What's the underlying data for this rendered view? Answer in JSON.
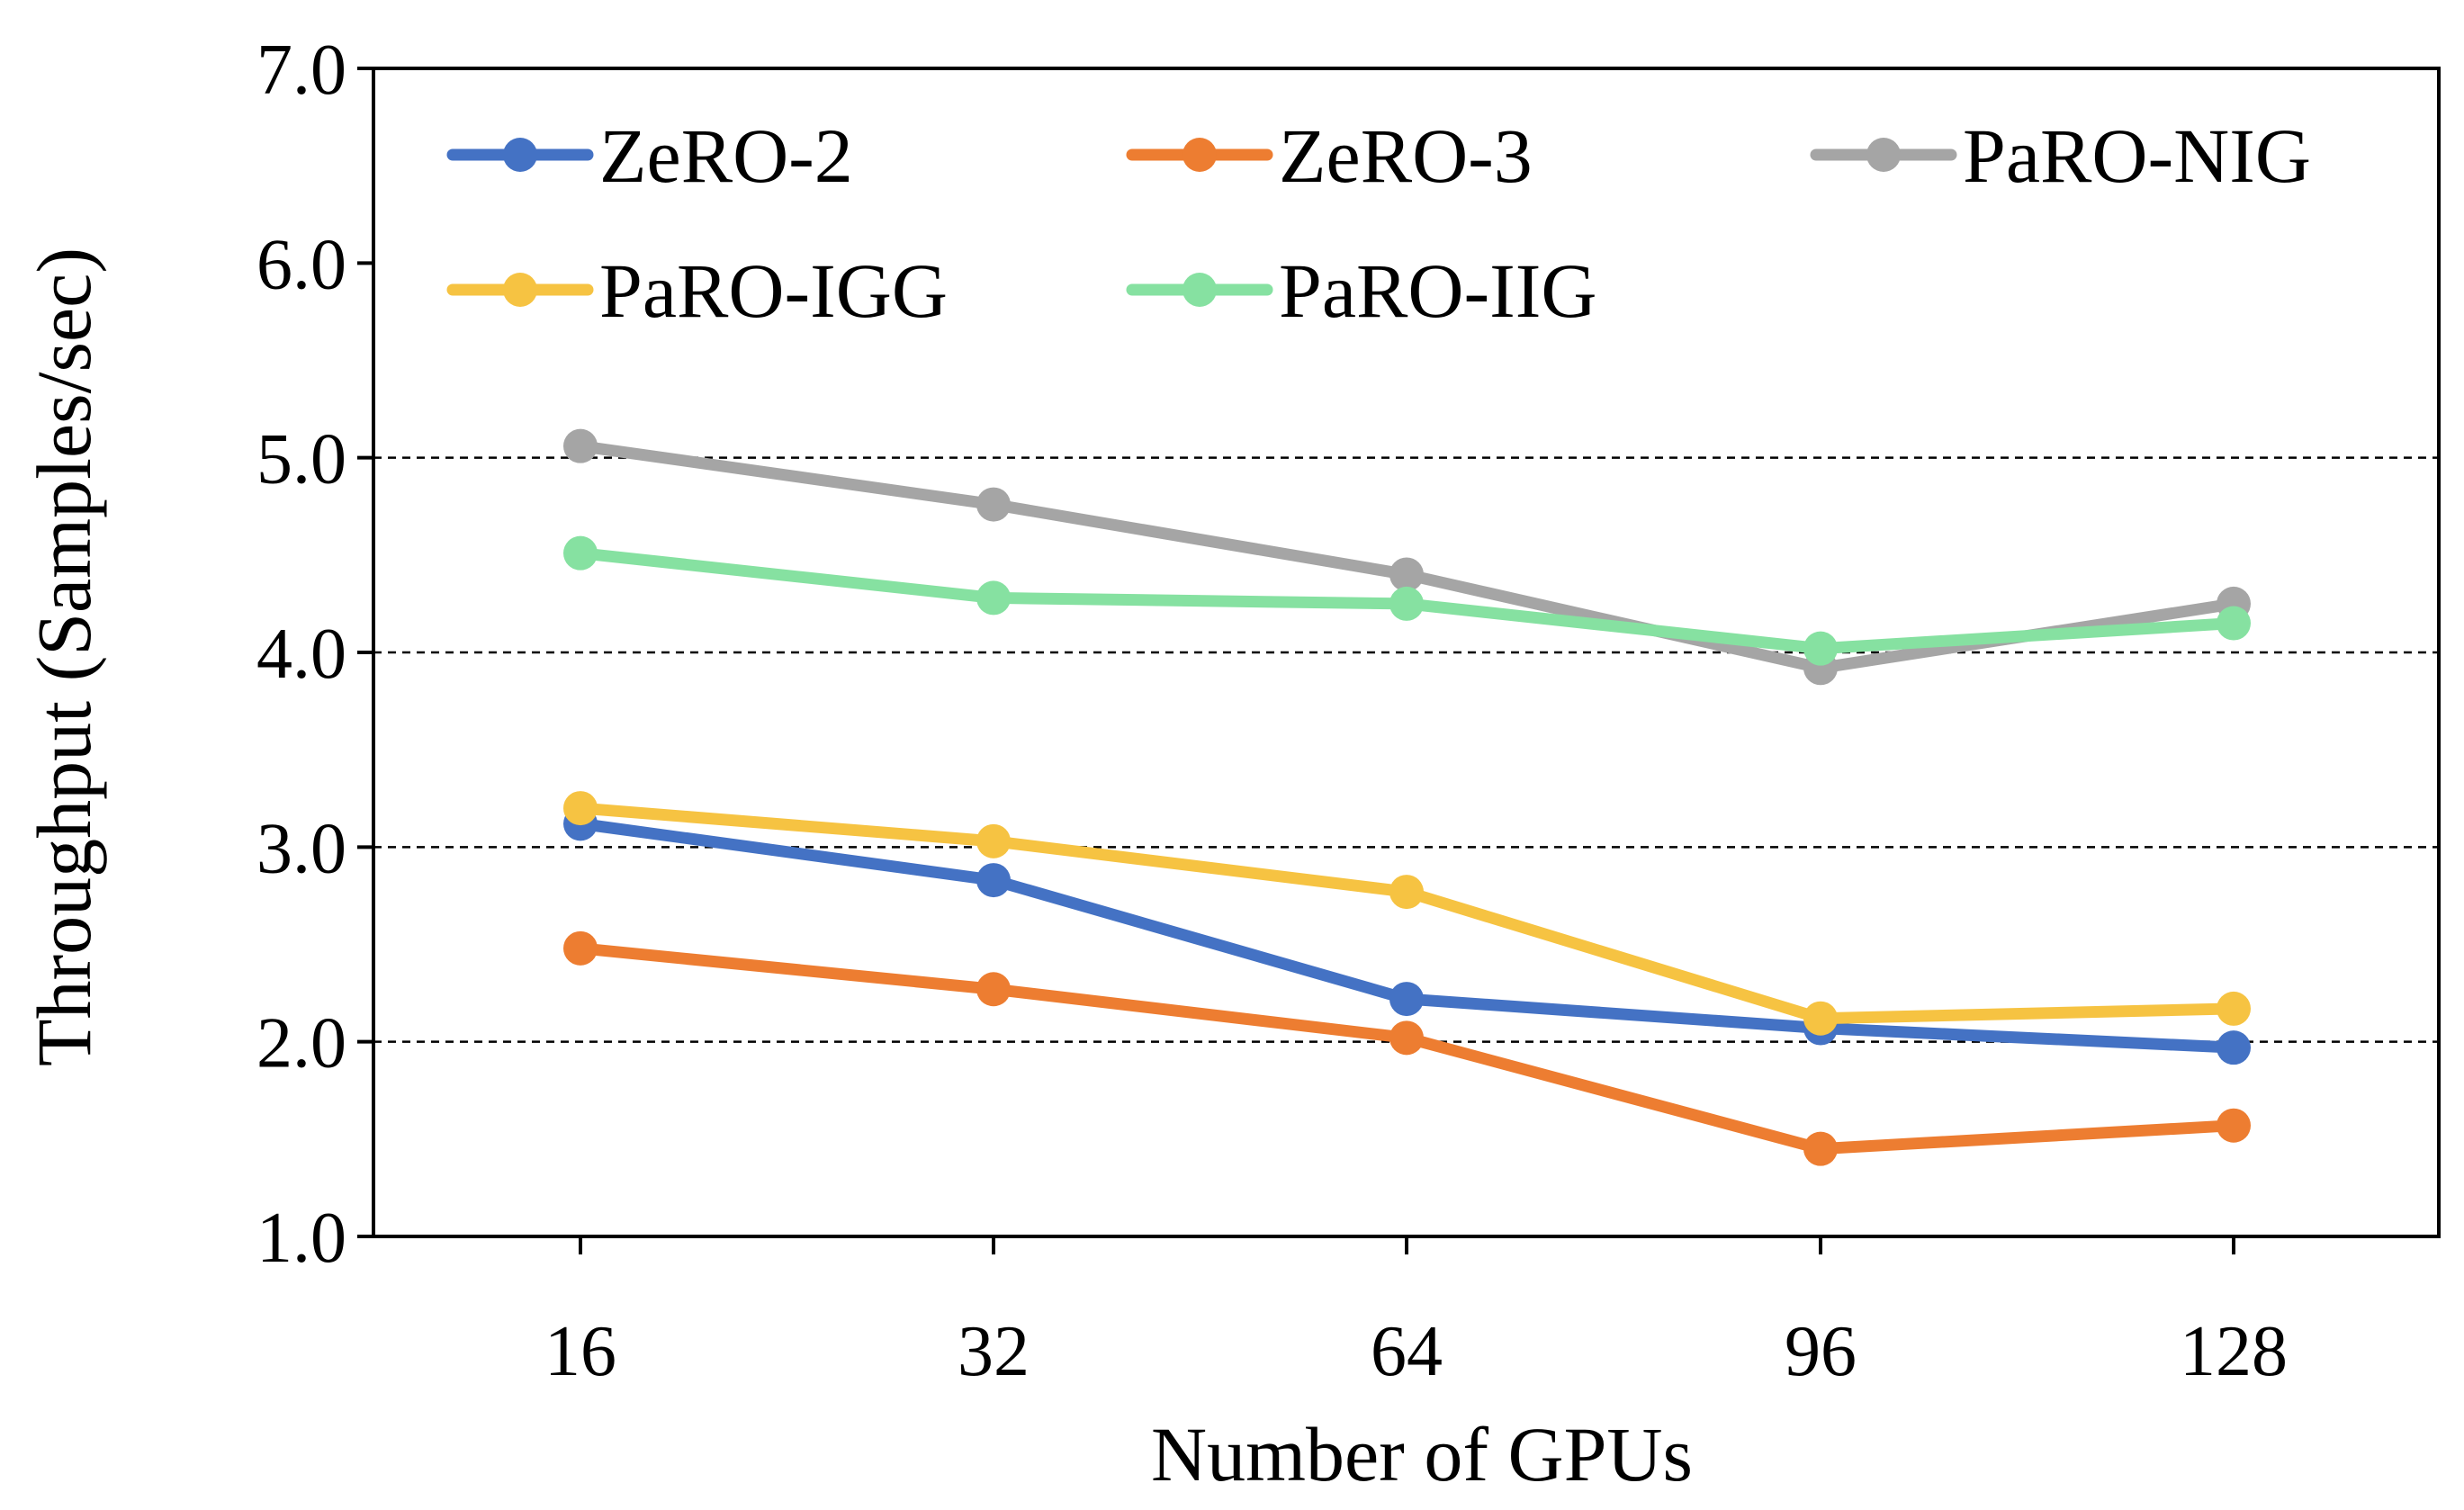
{
  "chart_data": {
    "type": "line",
    "title": "",
    "xlabel": "Number of GPUs",
    "ylabel": "Throughput (Samples/sec)",
    "categories": [
      "16",
      "32",
      "64",
      "96",
      "128"
    ],
    "ylim": [
      1.0,
      7.0
    ],
    "yticks": [
      "1.0",
      "2.0",
      "3.0",
      "4.0",
      "5.0",
      "6.0",
      "7.0"
    ],
    "grid": "dashed horizontal at 2.0, 3.0, 4.0, 5.0",
    "legend_position": "top",
    "series": [
      {
        "name": "ZeRO-2",
        "color": "#4472C4",
        "values": [
          3.12,
          2.83,
          2.22,
          2.07,
          1.97
        ]
      },
      {
        "name": "ZeRO-3",
        "color": "#ED7D31",
        "values": [
          2.48,
          2.27,
          2.02,
          1.45,
          1.57
        ]
      },
      {
        "name": "PaRO-NIG",
        "color": "#A5A5A5",
        "values": [
          5.06,
          4.76,
          4.4,
          3.92,
          4.25
        ]
      },
      {
        "name": "PaRO-IGG",
        "color": "#F6C342",
        "values": [
          3.2,
          3.03,
          2.77,
          2.12,
          2.17
        ]
      },
      {
        "name": "PaRO-IIG",
        "color": "#86E1A1",
        "values": [
          4.51,
          4.28,
          4.25,
          4.02,
          4.15
        ]
      }
    ]
  }
}
